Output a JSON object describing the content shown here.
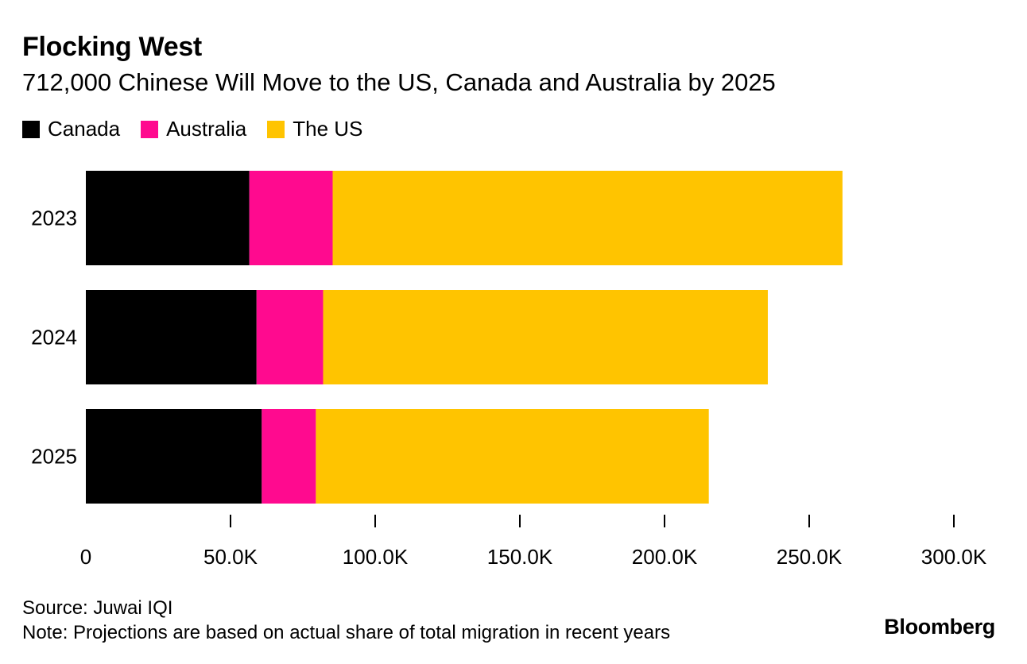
{
  "chart_data": {
    "type": "bar",
    "orientation": "horizontal",
    "stacked": true,
    "title": "Flocking West",
    "subtitle": "712,000 Chinese Will Move to the US, Canada and Australia by 2025",
    "categories": [
      "2023",
      "2024",
      "2025"
    ],
    "series": [
      {
        "name": "Canada",
        "color": "#000000",
        "values": [
          56500,
          59000,
          60800
        ]
      },
      {
        "name": "Australia",
        "color": "#ff0a8f",
        "values": [
          28800,
          23000,
          18700
        ]
      },
      {
        "name": "The US",
        "color": "#ffc400",
        "values": [
          176200,
          153700,
          135800
        ]
      }
    ],
    "xlim": [
      0,
      300000
    ],
    "xticks": [
      0,
      50000,
      100000,
      150000,
      200000,
      250000,
      300000
    ],
    "xtick_labels": [
      "0",
      "50.0K",
      "100.0K",
      "150.0K",
      "200.0K",
      "250.0K",
      "300.0K"
    ],
    "xlabel": "",
    "ylabel": "",
    "grid": false,
    "legend_position": "top-left"
  },
  "legend": [
    {
      "label": "Canada",
      "color": "#000000"
    },
    {
      "label": "Australia",
      "color": "#ff0a8f"
    },
    {
      "label": "The US",
      "color": "#ffc400"
    }
  ],
  "footer": {
    "source": "Source: Juwai IQI",
    "note": "Note: Projections are based on actual share of total migration in recent years",
    "brand": "Bloomberg"
  }
}
